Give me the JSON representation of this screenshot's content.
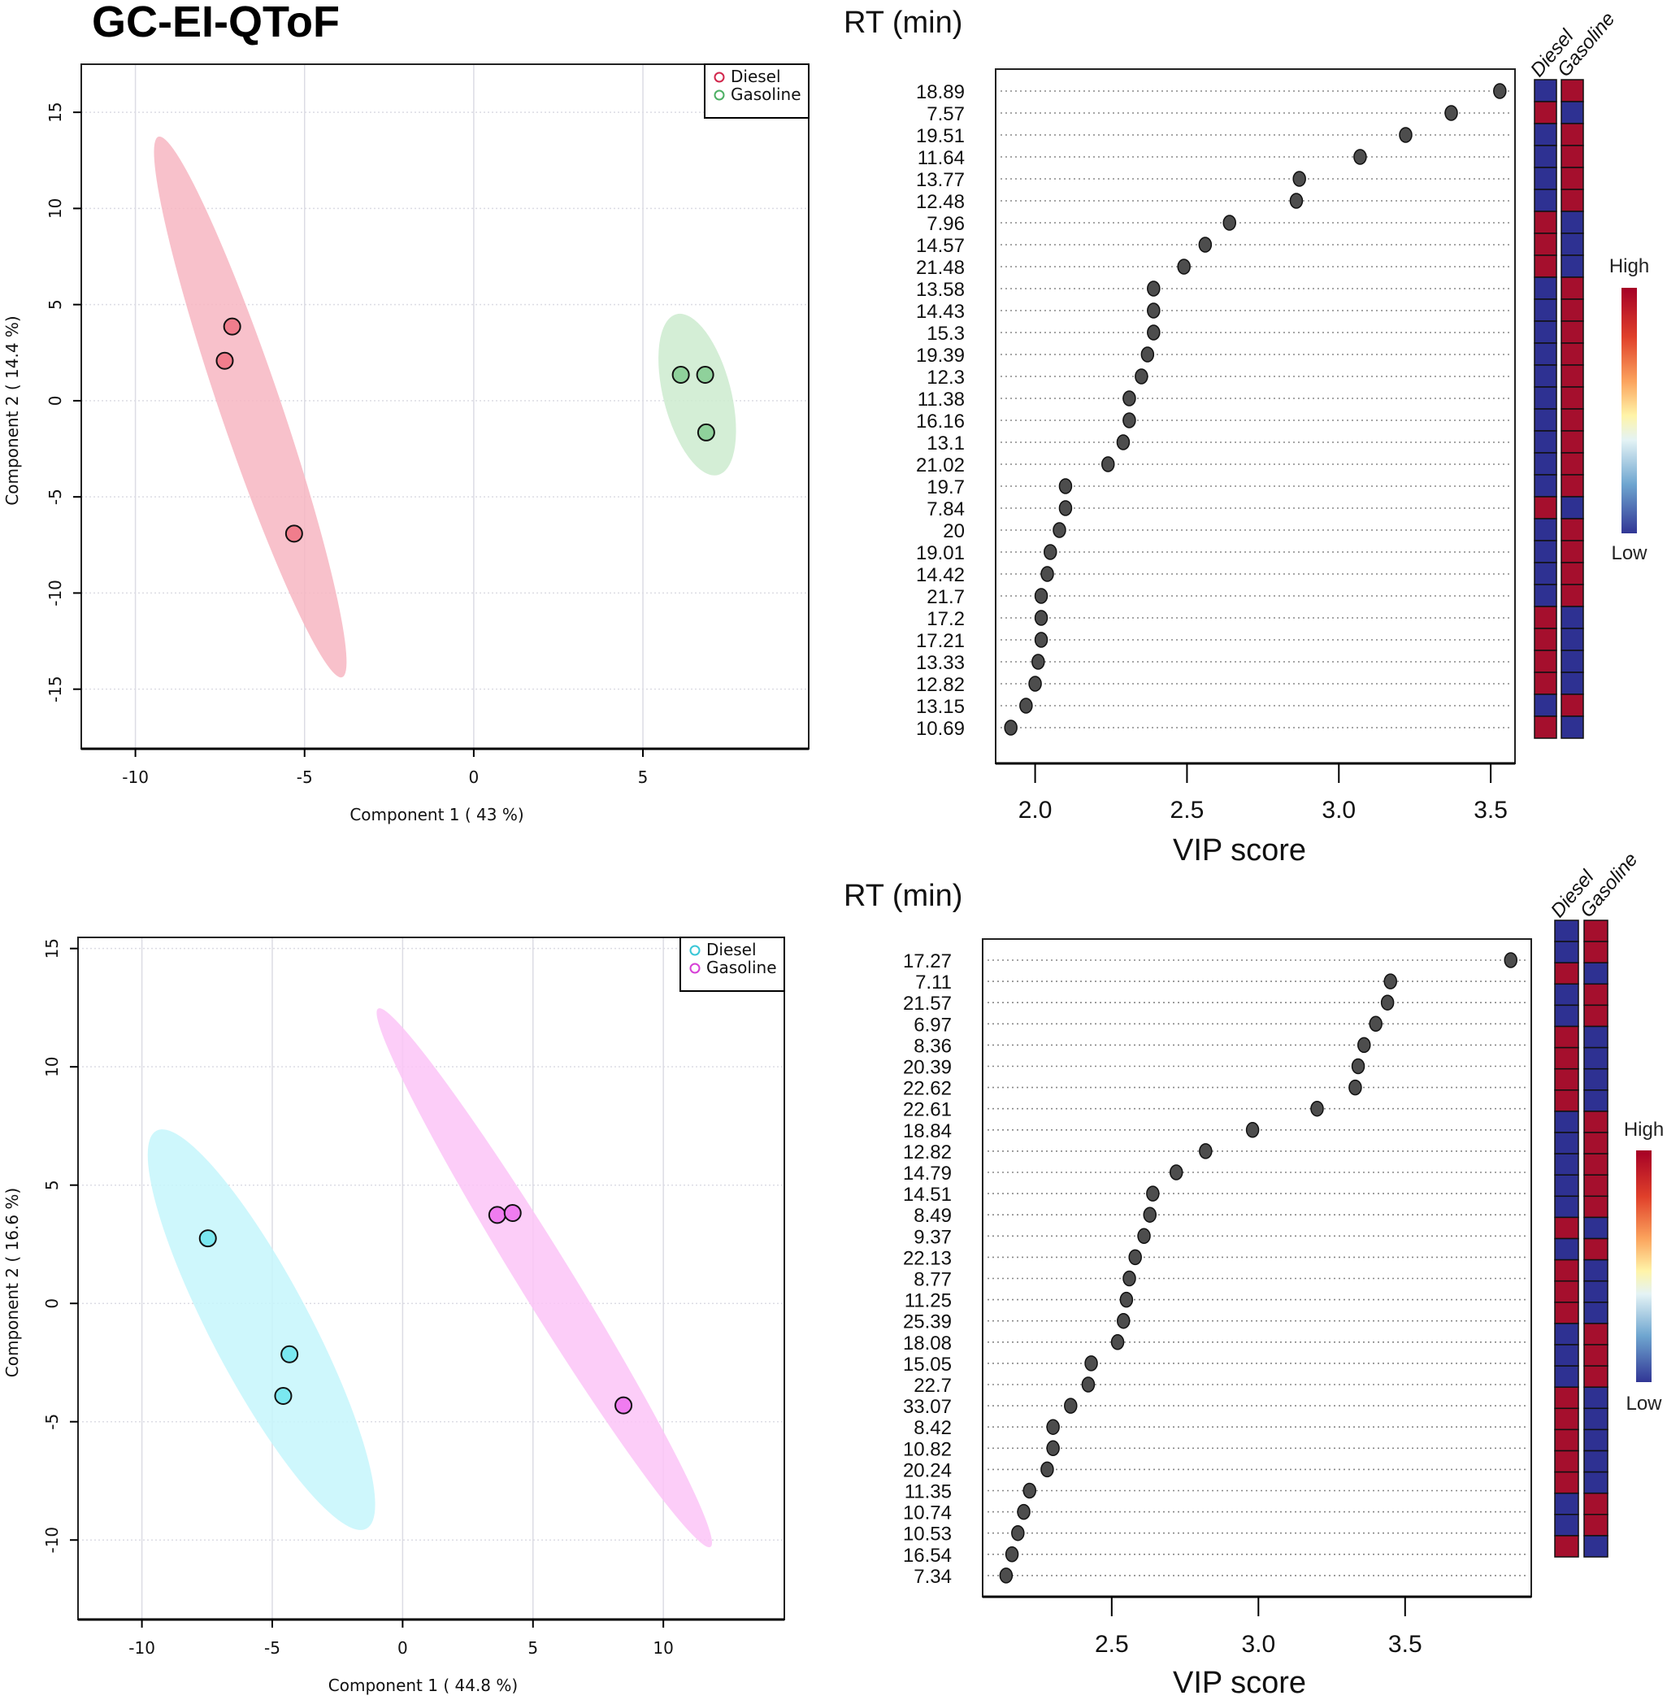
{
  "figure_title": "GC-EI-QToF",
  "colors": {
    "heat_high": "#a50f2d",
    "heat_low": "#2e3192",
    "dot": "#4d4d4d"
  },
  "chart_data": [
    {
      "id": "pca_top",
      "type": "scatter",
      "title": "",
      "xlabel": "Component 1 ( 43 %)",
      "ylabel": "Component 2 ( 14.4 %)",
      "xlim": [
        -11.6,
        9.9
      ],
      "ylim": [
        -18.1,
        17.5
      ],
      "xticks": [
        -10,
        -5,
        0,
        5
      ],
      "yticks": [
        -15,
        -10,
        -5,
        0,
        5,
        10,
        15
      ],
      "grid": true,
      "legend_position": "top-right",
      "series": [
        {
          "name": "Diesel",
          "marker_color": "#f07d8c",
          "legend_color": "#d1264b",
          "ellipse_color": "#f7b6c2",
          "ellipse": {
            "center": [
              -6.6,
              -0.33
            ],
            "top": [
              -9.32,
              13.73
            ],
            "bottom": [
              -3.89,
              -14.38
            ],
            "half_width": 0.9
          },
          "points": [
            [
              -7.14,
              3.86
            ],
            [
              -7.36,
              2.08
            ],
            [
              -5.31,
              -6.91
            ]
          ]
        },
        {
          "name": "Gasoline",
          "marker_color": "#8fd19b",
          "legend_color": "#4caf63",
          "ellipse_color": "#cdebcf",
          "ellipse": {
            "center": [
              6.61,
              0.35
            ],
            "top": [
              5.99,
              4.5
            ],
            "bottom": [
              7.22,
              -3.86
            ],
            "half_width": 1.0
          },
          "points": [
            [
              6.12,
              1.35
            ],
            [
              6.84,
              1.35
            ],
            [
              6.87,
              -1.65
            ]
          ]
        }
      ]
    },
    {
      "id": "vip_top",
      "type": "scatter",
      "title": "RT (min)",
      "xlabel": "VIP score",
      "ylabel": "RT (min)",
      "xlim": [
        1.87,
        3.58
      ],
      "xticks": [
        "2.0",
        "2.5",
        "3.0",
        "3.5"
      ],
      "heatmap_columns": [
        "Diesel",
        "Gasoline"
      ],
      "colorbar": {
        "high_label": "High",
        "low_label": "Low"
      },
      "rows": [
        {
          "rt": "18.89",
          "vip": 3.53,
          "diesel": "low",
          "gasoline": "high"
        },
        {
          "rt": "7.57",
          "vip": 3.37,
          "diesel": "high",
          "gasoline": "low"
        },
        {
          "rt": "19.51",
          "vip": 3.22,
          "diesel": "low",
          "gasoline": "high"
        },
        {
          "rt": "11.64",
          "vip": 3.07,
          "diesel": "low",
          "gasoline": "high"
        },
        {
          "rt": "13.77",
          "vip": 2.87,
          "diesel": "low",
          "gasoline": "high"
        },
        {
          "rt": "12.48",
          "vip": 2.86,
          "diesel": "low",
          "gasoline": "high"
        },
        {
          "rt": "7.96",
          "vip": 2.64,
          "diesel": "high",
          "gasoline": "low"
        },
        {
          "rt": "14.57",
          "vip": 2.56,
          "diesel": "high",
          "gasoline": "low"
        },
        {
          "rt": "21.48",
          "vip": 2.49,
          "diesel": "high",
          "gasoline": "low"
        },
        {
          "rt": "13.58",
          "vip": 2.39,
          "diesel": "low",
          "gasoline": "high"
        },
        {
          "rt": "14.43",
          "vip": 2.39,
          "diesel": "low",
          "gasoline": "high"
        },
        {
          "rt": "15.3",
          "vip": 2.39,
          "diesel": "low",
          "gasoline": "high"
        },
        {
          "rt": "19.39",
          "vip": 2.37,
          "diesel": "low",
          "gasoline": "high"
        },
        {
          "rt": "12.3",
          "vip": 2.35,
          "diesel": "low",
          "gasoline": "high"
        },
        {
          "rt": "11.38",
          "vip": 2.31,
          "diesel": "low",
          "gasoline": "high"
        },
        {
          "rt": "16.16",
          "vip": 2.31,
          "diesel": "low",
          "gasoline": "high"
        },
        {
          "rt": "13.1",
          "vip": 2.29,
          "diesel": "low",
          "gasoline": "high"
        },
        {
          "rt": "21.02",
          "vip": 2.24,
          "diesel": "low",
          "gasoline": "high"
        },
        {
          "rt": "19.7",
          "vip": 2.1,
          "diesel": "low",
          "gasoline": "high"
        },
        {
          "rt": "7.84",
          "vip": 2.1,
          "diesel": "high",
          "gasoline": "low"
        },
        {
          "rt": "20",
          "vip": 2.08,
          "diesel": "low",
          "gasoline": "high"
        },
        {
          "rt": "19.01",
          "vip": 2.05,
          "diesel": "low",
          "gasoline": "high"
        },
        {
          "rt": "14.42",
          "vip": 2.04,
          "diesel": "low",
          "gasoline": "high"
        },
        {
          "rt": "21.7",
          "vip": 2.02,
          "diesel": "low",
          "gasoline": "high"
        },
        {
          "rt": "17.2",
          "vip": 2.02,
          "diesel": "high",
          "gasoline": "low"
        },
        {
          "rt": "17.21",
          "vip": 2.02,
          "diesel": "high",
          "gasoline": "low"
        },
        {
          "rt": "13.33",
          "vip": 2.01,
          "diesel": "high",
          "gasoline": "low"
        },
        {
          "rt": "12.82",
          "vip": 2.0,
          "diesel": "high",
          "gasoline": "low"
        },
        {
          "rt": "13.15",
          "vip": 1.97,
          "diesel": "low",
          "gasoline": "high"
        },
        {
          "rt": "10.69",
          "vip": 1.92,
          "diesel": "high",
          "gasoline": "low"
        }
      ]
    },
    {
      "id": "pca_bottom",
      "type": "scatter",
      "title": "",
      "xlabel": "Component 1 ( 44.8 %)",
      "ylabel": "Component 2 ( 16.6 %)",
      "xlim": [
        -12.45,
        14.64
      ],
      "ylim": [
        -13.36,
        15.47
      ],
      "xticks": [
        -10,
        -5,
        0,
        5,
        10
      ],
      "yticks": [
        -10,
        -5,
        0,
        5,
        10,
        15
      ],
      "grid": true,
      "legend_position": "top-right",
      "series": [
        {
          "name": "Diesel",
          "marker_color": "#7ae8f0",
          "legend_color": "#38c6d6",
          "ellipse_color": "#c6f6fb",
          "ellipse": {
            "center": [
              -5.42,
              -1.1
            ],
            "top": [
              -9.44,
              7.3
            ],
            "bottom": [
              -1.39,
              -9.52
            ],
            "half_width": 1.9
          },
          "points": [
            [
              -7.47,
              2.75
            ],
            [
              -4.34,
              -2.15
            ],
            [
              -4.58,
              -3.91
            ]
          ]
        },
        {
          "name": "Gasoline",
          "marker_color": "#f07cf0",
          "legend_color": "#d63fd6",
          "ellipse_color": "#fbc4f7",
          "ellipse": {
            "center": [
              5.44,
              1.09
            ],
            "top": [
              -0.94,
              12.46
            ],
            "bottom": [
              11.81,
              -10.29
            ],
            "half_width": 1.0
          },
          "points": [
            [
              3.63,
              3.74
            ],
            [
              4.22,
              3.82
            ],
            [
              8.47,
              -4.31
            ]
          ]
        }
      ]
    },
    {
      "id": "vip_bottom",
      "type": "scatter",
      "title": "RT (min)",
      "xlabel": "VIP score",
      "ylabel": "RT (min)",
      "xlim": [
        2.06,
        3.93
      ],
      "xticks": [
        "2.5",
        "3.0",
        "3.5"
      ],
      "heatmap_columns": [
        "Diesel",
        "Gasoline"
      ],
      "colorbar": {
        "high_label": "High",
        "low_label": "Low"
      },
      "rows": [
        {
          "rt": "17.27",
          "vip": 3.86,
          "diesel": "low",
          "gasoline": "high"
        },
        {
          "rt": "7.11",
          "vip": 3.45,
          "diesel": "low",
          "gasoline": "high"
        },
        {
          "rt": "21.57",
          "vip": 3.44,
          "diesel": "high",
          "gasoline": "low"
        },
        {
          "rt": "6.97",
          "vip": 3.4,
          "diesel": "low",
          "gasoline": "high"
        },
        {
          "rt": "8.36",
          "vip": 3.36,
          "diesel": "low",
          "gasoline": "high"
        },
        {
          "rt": "20.39",
          "vip": 3.34,
          "diesel": "high",
          "gasoline": "low"
        },
        {
          "rt": "22.62",
          "vip": 3.33,
          "diesel": "high",
          "gasoline": "low"
        },
        {
          "rt": "22.61",
          "vip": 3.2,
          "diesel": "high",
          "gasoline": "low"
        },
        {
          "rt": "18.84",
          "vip": 2.98,
          "diesel": "high",
          "gasoline": "low"
        },
        {
          "rt": "12.82",
          "vip": 2.82,
          "diesel": "low",
          "gasoline": "high"
        },
        {
          "rt": "14.79",
          "vip": 2.72,
          "diesel": "low",
          "gasoline": "high"
        },
        {
          "rt": "14.51",
          "vip": 2.64,
          "diesel": "low",
          "gasoline": "high"
        },
        {
          "rt": "8.49",
          "vip": 2.63,
          "diesel": "low",
          "gasoline": "high"
        },
        {
          "rt": "9.37",
          "vip": 2.61,
          "diesel": "low",
          "gasoline": "high"
        },
        {
          "rt": "22.13",
          "vip": 2.58,
          "diesel": "high",
          "gasoline": "low"
        },
        {
          "rt": "8.77",
          "vip": 2.56,
          "diesel": "low",
          "gasoline": "high"
        },
        {
          "rt": "11.25",
          "vip": 2.55,
          "diesel": "high",
          "gasoline": "low"
        },
        {
          "rt": "25.39",
          "vip": 2.54,
          "diesel": "high",
          "gasoline": "low"
        },
        {
          "rt": "18.08",
          "vip": 2.52,
          "diesel": "high",
          "gasoline": "low"
        },
        {
          "rt": "15.05",
          "vip": 2.43,
          "diesel": "low",
          "gasoline": "high"
        },
        {
          "rt": "22.7",
          "vip": 2.42,
          "diesel": "low",
          "gasoline": "high"
        },
        {
          "rt": "33.07",
          "vip": 2.36,
          "diesel": "low",
          "gasoline": "high"
        },
        {
          "rt": "8.42",
          "vip": 2.3,
          "diesel": "high",
          "gasoline": "low"
        },
        {
          "rt": "10.82",
          "vip": 2.3,
          "diesel": "high",
          "gasoline": "low"
        },
        {
          "rt": "20.24",
          "vip": 2.28,
          "diesel": "high",
          "gasoline": "low"
        },
        {
          "rt": "11.35",
          "vip": 2.22,
          "diesel": "high",
          "gasoline": "low"
        },
        {
          "rt": "10.74",
          "vip": 2.2,
          "diesel": "high",
          "gasoline": "low"
        },
        {
          "rt": "10.53",
          "vip": 2.18,
          "diesel": "low",
          "gasoline": "high"
        },
        {
          "rt": "16.54",
          "vip": 2.16,
          "diesel": "low",
          "gasoline": "high"
        },
        {
          "rt": "7.34",
          "vip": 2.14,
          "diesel": "high",
          "gasoline": "low"
        }
      ]
    }
  ]
}
